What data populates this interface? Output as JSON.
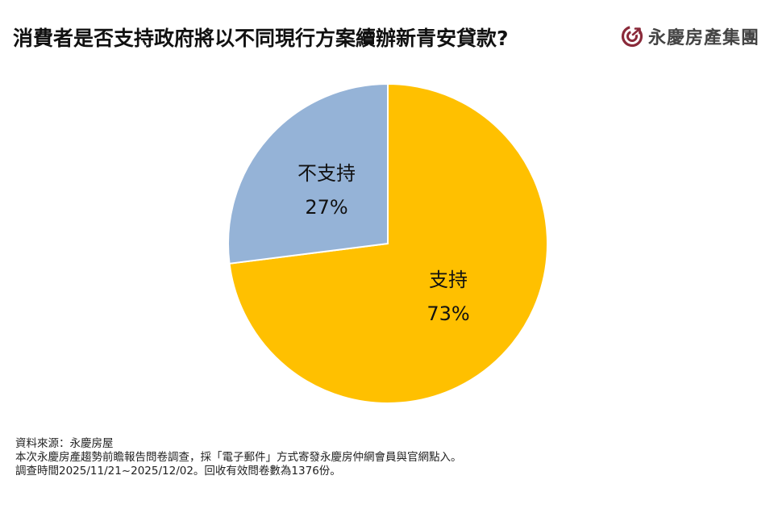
{
  "header": {
    "title": "消費者是否支持政府將以不同現行方案續辦新青安貸款?",
    "brand_name": "永慶房產集團",
    "brand_icon": "spiral-arrow-logo-icon",
    "brand_color": "#8a2a3a"
  },
  "chart_data": {
    "type": "pie",
    "title": "消費者是否支持政府將以不同現行方案續辦新青安貸款?",
    "categories": [
      "支持",
      "不支持"
    ],
    "values": [
      73,
      27
    ],
    "unit": "%",
    "colors": [
      "#FFC000",
      "#95B3D7"
    ],
    "start_angle_deg": 0,
    "direction": "clockwise",
    "labels": [
      {
        "name": "支持",
        "value": "73%"
      },
      {
        "name": "不支持",
        "value": "27%"
      }
    ],
    "legend": "none (inline labels)"
  },
  "labels": {
    "support": {
      "name": "支持",
      "pct": "73%"
    },
    "oppose": {
      "name": "不支持",
      "pct": "27%"
    }
  },
  "footer": {
    "lines": [
      "資料來源：永慶房屋",
      "本次永慶房產趨勢前瞻報告問卷調查，採「電子郵件」方式寄發永慶房仲網會員與官網點入。",
      "調查時間2025/11/21~2025/12/02。回收有效問卷數為1376份。"
    ]
  }
}
